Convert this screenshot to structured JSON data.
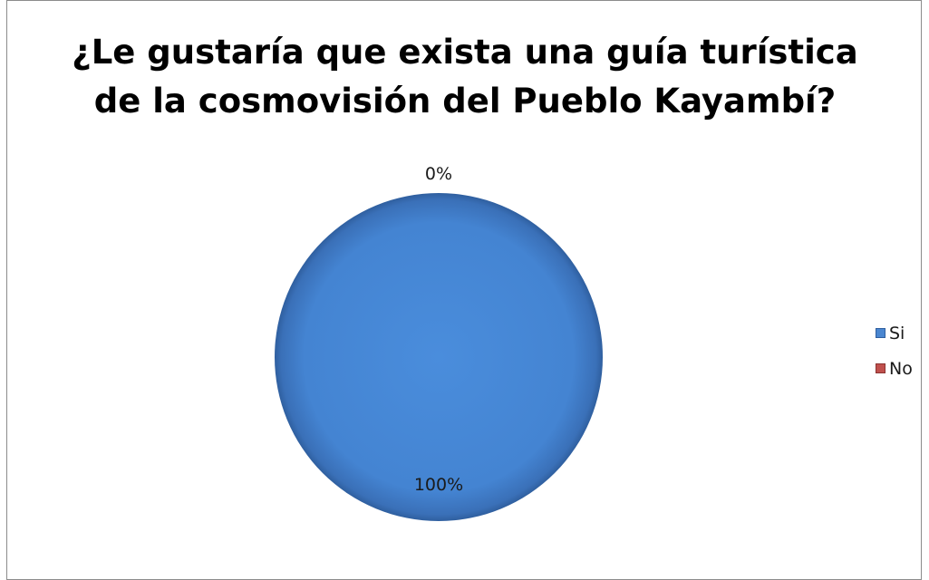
{
  "chart_data": {
    "type": "pie",
    "title_lines": [
      "¿Le gustaría que exista una guía turística",
      "de la cosmovisión del Pueblo Kayambí?"
    ],
    "slices": [
      {
        "name": "Si",
        "value": 100,
        "label": "100%",
        "color": "#4a86d0"
      },
      {
        "name": "No",
        "value": 0,
        "label": "0%",
        "color": "#c0504d"
      }
    ],
    "legend_position": "right"
  }
}
